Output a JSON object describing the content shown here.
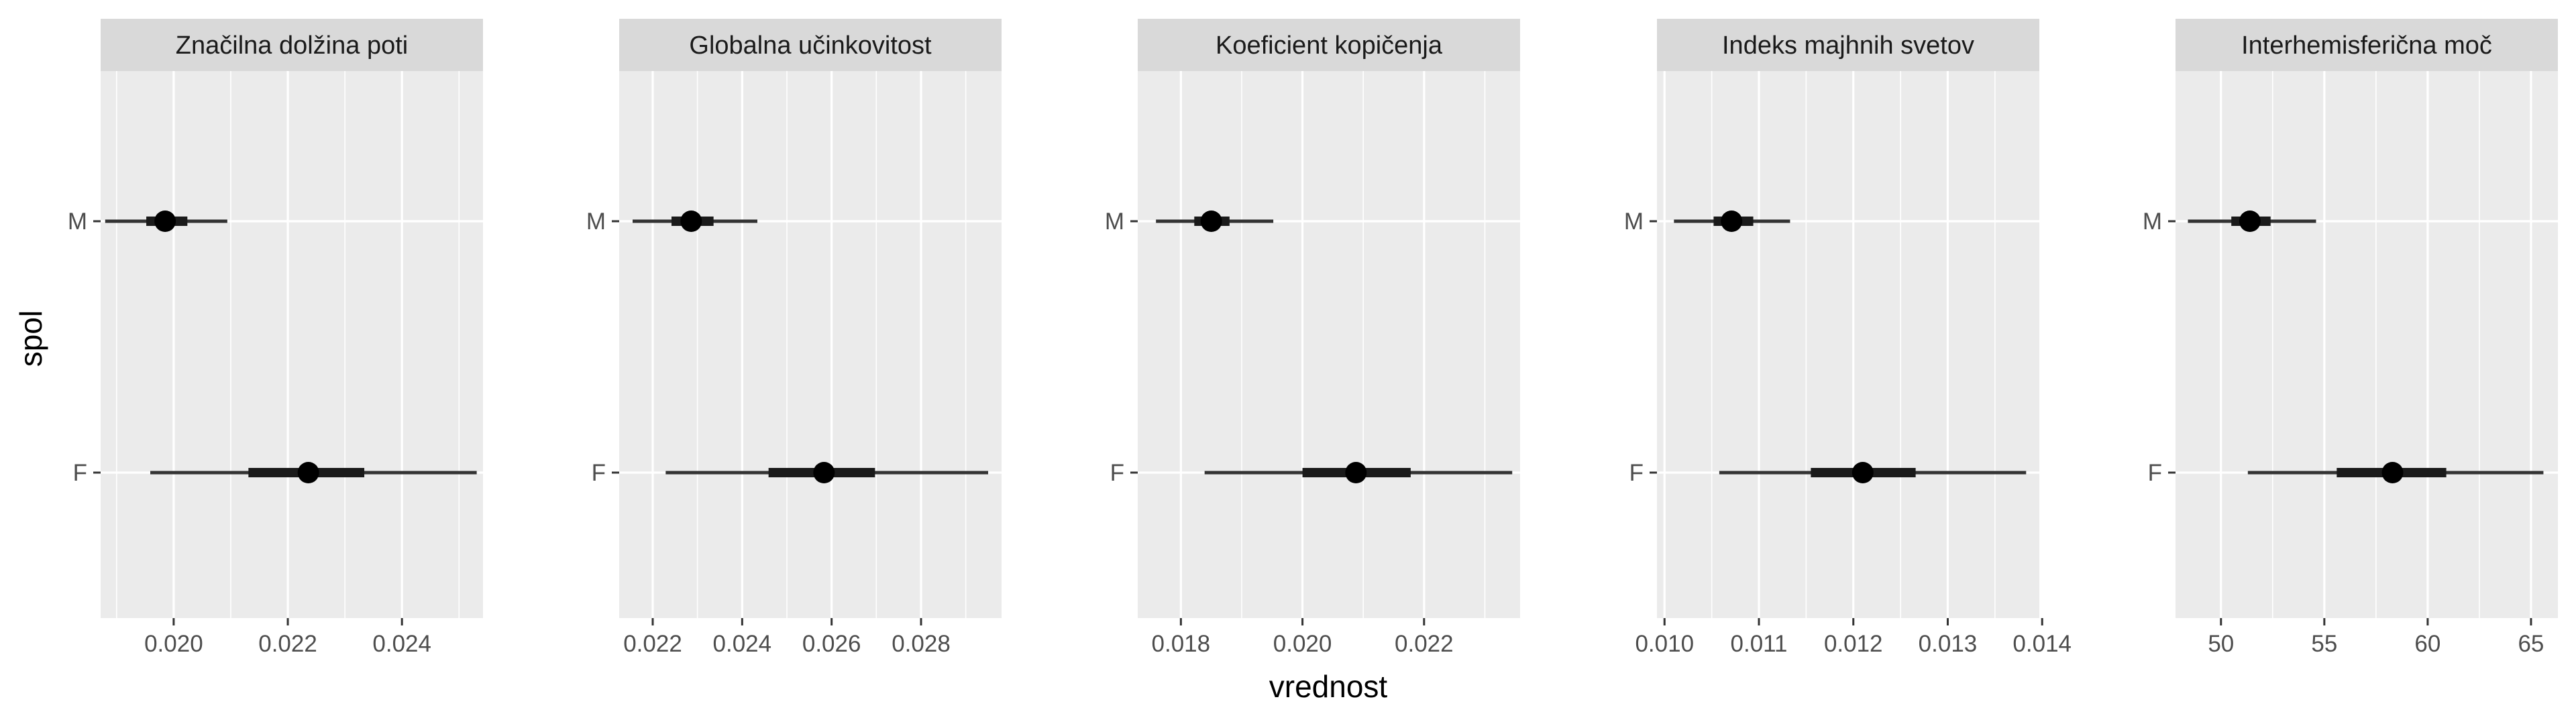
{
  "chart_data": {
    "type": "pointrange",
    "xlabel": "vrednost",
    "ylabel": "spol",
    "categories": [
      "M",
      "F"
    ],
    "panels": [
      {
        "title": "Značilna dolžina poti",
        "xlim": [
          0.01872,
          0.02542
        ],
        "xticks": [
          0.02,
          0.022,
          0.024
        ],
        "xtick_labels": [
          "0.020",
          "0.022",
          "0.024"
        ],
        "points": [
          {
            "category": "M",
            "value": 0.01985,
            "inner": [
              0.01952,
              0.02024
            ],
            "outer": [
              0.0188,
              0.02094
            ]
          },
          {
            "category": "F",
            "value": 0.02236,
            "inner": [
              0.02131,
              0.02334
            ],
            "outer": [
              0.01959,
              0.02531
            ]
          }
        ]
      },
      {
        "title": "Globalna učinkovitost",
        "xlim": [
          0.02125,
          0.0298
        ],
        "xticks": [
          0.022,
          0.024,
          0.026,
          0.028
        ],
        "xtick_labels": [
          "0.022",
          "0.024",
          "0.026",
          "0.028"
        ],
        "points": [
          {
            "category": "M",
            "value": 0.02286,
            "inner": [
              0.02242,
              0.02336
            ],
            "outer": [
              0.02155,
              0.02434
            ]
          },
          {
            "category": "F",
            "value": 0.02583,
            "inner": [
              0.02459,
              0.02697
            ],
            "outer": [
              0.02229,
              0.0295
            ]
          }
        ]
      },
      {
        "title": "Koeficient kopičenja",
        "xlim": [
          0.01729,
          0.02358
        ],
        "xticks": [
          0.018,
          0.02,
          0.022
        ],
        "xtick_labels": [
          "0.018",
          "0.020",
          "0.022"
        ],
        "points": [
          {
            "category": "M",
            "value": 0.0185,
            "inner": [
              0.01822,
              0.0188
            ],
            "outer": [
              0.01759,
              0.01952
            ]
          },
          {
            "category": "F",
            "value": 0.02088,
            "inner": [
              0.02,
              0.02178
            ],
            "outer": [
              0.01839,
              0.02345
            ]
          }
        ]
      },
      {
        "title": "Indeks majhnih svetov",
        "xlim": [
          0.00992,
          0.01397
        ],
        "xticks": [
          0.01,
          0.011,
          0.012,
          0.013,
          0.014
        ],
        "xtick_labels": [
          "0.010",
          "0.011",
          "0.012",
          "0.013",
          "0.014"
        ],
        "points": [
          {
            "category": "M",
            "value": 0.01071,
            "inner": [
              0.01052,
              0.01094
            ],
            "outer": [
              0.0101,
              0.01133
            ]
          },
          {
            "category": "F",
            "value": 0.0121,
            "inner": [
              0.01155,
              0.01266
            ],
            "outer": [
              0.01058,
              0.01383
            ]
          }
        ]
      },
      {
        "title": "Interhemisferična moč",
        "xlim": [
          47.8,
          66.3
        ],
        "xticks": [
          50,
          55,
          60,
          65
        ],
        "xtick_labels": [
          "50",
          "55",
          "60",
          "65"
        ],
        "points": [
          {
            "category": "M",
            "value": 51.4,
            "inner": [
              50.5,
              52.4
            ],
            "outer": [
              48.4,
              54.6
            ]
          },
          {
            "category": "F",
            "value": 58.3,
            "inner": [
              55.6,
              60.9
            ],
            "outer": [
              51.3,
              65.6
            ]
          }
        ]
      }
    ],
    "grid": true,
    "legend": "none"
  }
}
